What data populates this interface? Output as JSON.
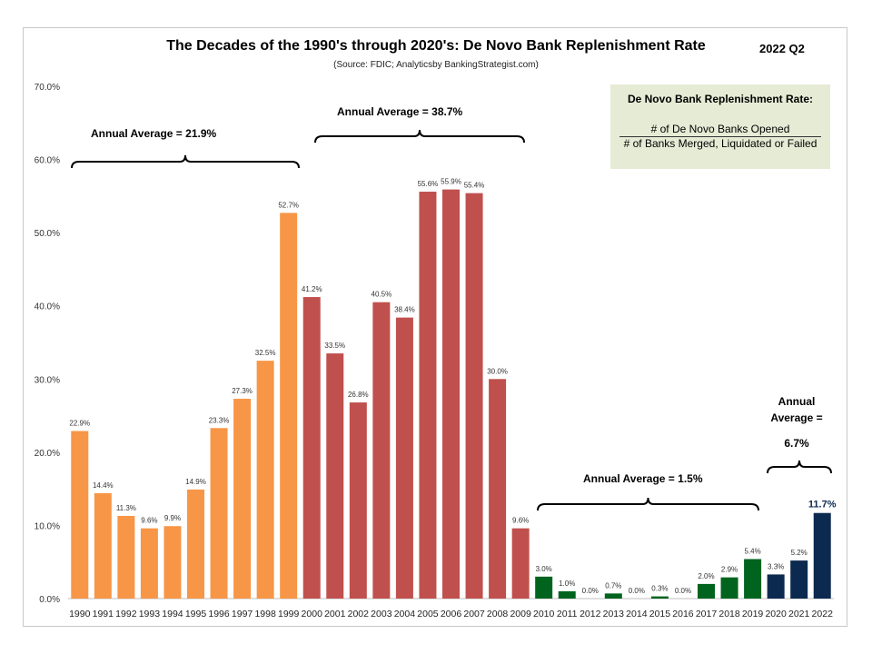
{
  "header": {
    "title": "The Decades of the 1990's through 2020's: De Novo Bank Replenishment Rate",
    "subtitle": "(Source: FDIC; Analyticsby BankingStrategist.com)",
    "period": "2022  Q2"
  },
  "legend": {
    "title": "De Novo Bank Replenishment Rate:",
    "numerator": "# of De Novo Banks Opened",
    "denominator": "# of Banks Merged, Liquidated or Failed"
  },
  "annotations": {
    "a1990s": "Annual Average =   21.9%",
    "a2000s": "Annual Average =    38.7%",
    "a2010s": "Annual Average =    1.5%",
    "a2020s_line1": "Annual",
    "a2020s_line2": "Average =",
    "a2020s_line3": "6.7%"
  },
  "colors": {
    "d1990s": "#f79646",
    "d2000s": "#c0504d",
    "d2010s": "#00641e",
    "d2020s": "#0c2a4f"
  },
  "chart_data": {
    "type": "bar",
    "title": "The Decades of the 1990's through 2020's: De Novo Bank Replenishment Rate",
    "ylim": [
      0,
      70
    ],
    "yticks": [
      "0.0%",
      "10.0%",
      "20.0%",
      "30.0%",
      "40.0%",
      "50.0%",
      "60.0%",
      "70.0%"
    ],
    "categories": [
      "1990",
      "1991",
      "1992",
      "1993",
      "1994",
      "1995",
      "1996",
      "1997",
      "1998",
      "1999",
      "2000",
      "2001",
      "2002",
      "2003",
      "2004",
      "2005",
      "2006",
      "2007",
      "2008",
      "2009",
      "2010",
      "2011",
      "2012",
      "2013",
      "2014",
      "2015",
      "2016",
      "2017",
      "2018",
      "2019",
      "2020",
      "2021",
      "2022"
    ],
    "values": [
      22.9,
      14.4,
      11.3,
      9.6,
      9.9,
      14.9,
      23.3,
      27.3,
      32.5,
      52.7,
      41.2,
      33.5,
      26.8,
      40.5,
      38.4,
      55.6,
      55.9,
      55.4,
      30.0,
      9.6,
      3.0,
      1.0,
      0.0,
      0.7,
      0.0,
      0.3,
      0.0,
      2.0,
      2.9,
      5.4,
      3.3,
      5.2,
      11.7
    ],
    "labels": [
      "22.9%",
      "14.4%",
      "11.3%",
      "9.6%",
      "9.9%",
      "14.9%",
      "23.3%",
      "27.3%",
      "32.5%",
      "52.7%",
      "41.2%",
      "33.5%",
      "26.8%",
      "40.5%",
      "38.4%",
      "55.6%",
      "55.9%",
      "55.4%",
      "30.0%",
      "9.6%",
      "3.0%",
      "1.0%",
      "0.0%",
      "0.7%",
      "0.0%",
      "0.3%",
      "0.0%",
      "2.0%",
      "2.9%",
      "5.4%",
      "3.3%",
      "5.2%",
      "11.7%"
    ],
    "decade": [
      "d1990s",
      "d1990s",
      "d1990s",
      "d1990s",
      "d1990s",
      "d1990s",
      "d1990s",
      "d1990s",
      "d1990s",
      "d1990s",
      "d2000s",
      "d2000s",
      "d2000s",
      "d2000s",
      "d2000s",
      "d2000s",
      "d2000s",
      "d2000s",
      "d2000s",
      "d2000s",
      "d2010s",
      "d2010s",
      "d2010s",
      "d2010s",
      "d2010s",
      "d2010s",
      "d2010s",
      "d2010s",
      "d2010s",
      "d2010s",
      "d2020s",
      "d2020s",
      "d2020s"
    ],
    "grid": false,
    "xlabel": "",
    "ylabel": ""
  }
}
